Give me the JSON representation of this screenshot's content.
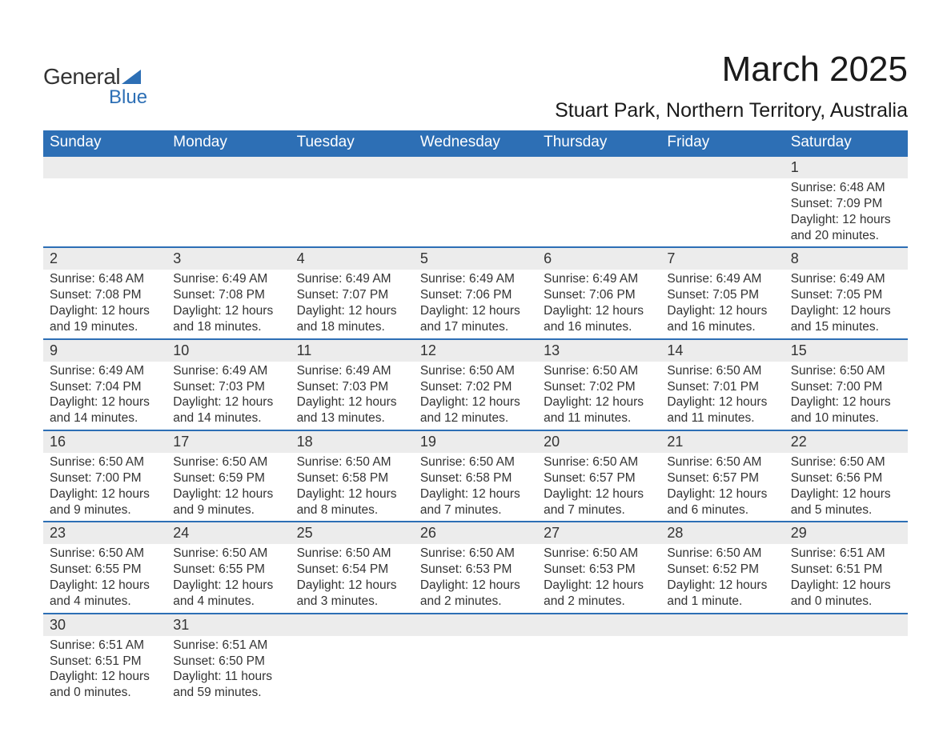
{
  "logo": {
    "brand1": "General",
    "brand2": "Blue"
  },
  "title": "March 2025",
  "location": "Stuart Park, Northern Territory, Australia",
  "weekdays": [
    "Sunday",
    "Monday",
    "Tuesday",
    "Wednesday",
    "Thursday",
    "Friday",
    "Saturday"
  ],
  "colors": {
    "header_bg": "#2d6fb5",
    "header_text": "#ffffff",
    "daynum_bg": "#ececec",
    "row_border": "#2d6fb5",
    "text": "#333333",
    "page_bg": "#ffffff"
  },
  "typography": {
    "title_fontsize": 44,
    "location_fontsize": 25,
    "weekday_fontsize": 19,
    "daynum_fontsize": 18,
    "body_fontsize": 15.5
  },
  "weeks": [
    [
      null,
      null,
      null,
      null,
      null,
      null,
      {
        "d": "1",
        "sunrise": "Sunrise: 6:48 AM",
        "sunset": "Sunset: 7:09 PM",
        "dl1": "Daylight: 12 hours",
        "dl2": "and 20 minutes."
      }
    ],
    [
      {
        "d": "2",
        "sunrise": "Sunrise: 6:48 AM",
        "sunset": "Sunset: 7:08 PM",
        "dl1": "Daylight: 12 hours",
        "dl2": "and 19 minutes."
      },
      {
        "d": "3",
        "sunrise": "Sunrise: 6:49 AM",
        "sunset": "Sunset: 7:08 PM",
        "dl1": "Daylight: 12 hours",
        "dl2": "and 18 minutes."
      },
      {
        "d": "4",
        "sunrise": "Sunrise: 6:49 AM",
        "sunset": "Sunset: 7:07 PM",
        "dl1": "Daylight: 12 hours",
        "dl2": "and 18 minutes."
      },
      {
        "d": "5",
        "sunrise": "Sunrise: 6:49 AM",
        "sunset": "Sunset: 7:06 PM",
        "dl1": "Daylight: 12 hours",
        "dl2": "and 17 minutes."
      },
      {
        "d": "6",
        "sunrise": "Sunrise: 6:49 AM",
        "sunset": "Sunset: 7:06 PM",
        "dl1": "Daylight: 12 hours",
        "dl2": "and 16 minutes."
      },
      {
        "d": "7",
        "sunrise": "Sunrise: 6:49 AM",
        "sunset": "Sunset: 7:05 PM",
        "dl1": "Daylight: 12 hours",
        "dl2": "and 16 minutes."
      },
      {
        "d": "8",
        "sunrise": "Sunrise: 6:49 AM",
        "sunset": "Sunset: 7:05 PM",
        "dl1": "Daylight: 12 hours",
        "dl2": "and 15 minutes."
      }
    ],
    [
      {
        "d": "9",
        "sunrise": "Sunrise: 6:49 AM",
        "sunset": "Sunset: 7:04 PM",
        "dl1": "Daylight: 12 hours",
        "dl2": "and 14 minutes."
      },
      {
        "d": "10",
        "sunrise": "Sunrise: 6:49 AM",
        "sunset": "Sunset: 7:03 PM",
        "dl1": "Daylight: 12 hours",
        "dl2": "and 14 minutes."
      },
      {
        "d": "11",
        "sunrise": "Sunrise: 6:49 AM",
        "sunset": "Sunset: 7:03 PM",
        "dl1": "Daylight: 12 hours",
        "dl2": "and 13 minutes."
      },
      {
        "d": "12",
        "sunrise": "Sunrise: 6:50 AM",
        "sunset": "Sunset: 7:02 PM",
        "dl1": "Daylight: 12 hours",
        "dl2": "and 12 minutes."
      },
      {
        "d": "13",
        "sunrise": "Sunrise: 6:50 AM",
        "sunset": "Sunset: 7:02 PM",
        "dl1": "Daylight: 12 hours",
        "dl2": "and 11 minutes."
      },
      {
        "d": "14",
        "sunrise": "Sunrise: 6:50 AM",
        "sunset": "Sunset: 7:01 PM",
        "dl1": "Daylight: 12 hours",
        "dl2": "and 11 minutes."
      },
      {
        "d": "15",
        "sunrise": "Sunrise: 6:50 AM",
        "sunset": "Sunset: 7:00 PM",
        "dl1": "Daylight: 12 hours",
        "dl2": "and 10 minutes."
      }
    ],
    [
      {
        "d": "16",
        "sunrise": "Sunrise: 6:50 AM",
        "sunset": "Sunset: 7:00 PM",
        "dl1": "Daylight: 12 hours",
        "dl2": "and 9 minutes."
      },
      {
        "d": "17",
        "sunrise": "Sunrise: 6:50 AM",
        "sunset": "Sunset: 6:59 PM",
        "dl1": "Daylight: 12 hours",
        "dl2": "and 9 minutes."
      },
      {
        "d": "18",
        "sunrise": "Sunrise: 6:50 AM",
        "sunset": "Sunset: 6:58 PM",
        "dl1": "Daylight: 12 hours",
        "dl2": "and 8 minutes."
      },
      {
        "d": "19",
        "sunrise": "Sunrise: 6:50 AM",
        "sunset": "Sunset: 6:58 PM",
        "dl1": "Daylight: 12 hours",
        "dl2": "and 7 minutes."
      },
      {
        "d": "20",
        "sunrise": "Sunrise: 6:50 AM",
        "sunset": "Sunset: 6:57 PM",
        "dl1": "Daylight: 12 hours",
        "dl2": "and 7 minutes."
      },
      {
        "d": "21",
        "sunrise": "Sunrise: 6:50 AM",
        "sunset": "Sunset: 6:57 PM",
        "dl1": "Daylight: 12 hours",
        "dl2": "and 6 minutes."
      },
      {
        "d": "22",
        "sunrise": "Sunrise: 6:50 AM",
        "sunset": "Sunset: 6:56 PM",
        "dl1": "Daylight: 12 hours",
        "dl2": "and 5 minutes."
      }
    ],
    [
      {
        "d": "23",
        "sunrise": "Sunrise: 6:50 AM",
        "sunset": "Sunset: 6:55 PM",
        "dl1": "Daylight: 12 hours",
        "dl2": "and 4 minutes."
      },
      {
        "d": "24",
        "sunrise": "Sunrise: 6:50 AM",
        "sunset": "Sunset: 6:55 PM",
        "dl1": "Daylight: 12 hours",
        "dl2": "and 4 minutes."
      },
      {
        "d": "25",
        "sunrise": "Sunrise: 6:50 AM",
        "sunset": "Sunset: 6:54 PM",
        "dl1": "Daylight: 12 hours",
        "dl2": "and 3 minutes."
      },
      {
        "d": "26",
        "sunrise": "Sunrise: 6:50 AM",
        "sunset": "Sunset: 6:53 PM",
        "dl1": "Daylight: 12 hours",
        "dl2": "and 2 minutes."
      },
      {
        "d": "27",
        "sunrise": "Sunrise: 6:50 AM",
        "sunset": "Sunset: 6:53 PM",
        "dl1": "Daylight: 12 hours",
        "dl2": "and 2 minutes."
      },
      {
        "d": "28",
        "sunrise": "Sunrise: 6:50 AM",
        "sunset": "Sunset: 6:52 PM",
        "dl1": "Daylight: 12 hours",
        "dl2": "and 1 minute."
      },
      {
        "d": "29",
        "sunrise": "Sunrise: 6:51 AM",
        "sunset": "Sunset: 6:51 PM",
        "dl1": "Daylight: 12 hours",
        "dl2": "and 0 minutes."
      }
    ],
    [
      {
        "d": "30",
        "sunrise": "Sunrise: 6:51 AM",
        "sunset": "Sunset: 6:51 PM",
        "dl1": "Daylight: 12 hours",
        "dl2": "and 0 minutes."
      },
      {
        "d": "31",
        "sunrise": "Sunrise: 6:51 AM",
        "sunset": "Sunset: 6:50 PM",
        "dl1": "Daylight: 11 hours",
        "dl2": "and 59 minutes."
      },
      null,
      null,
      null,
      null,
      null
    ]
  ]
}
